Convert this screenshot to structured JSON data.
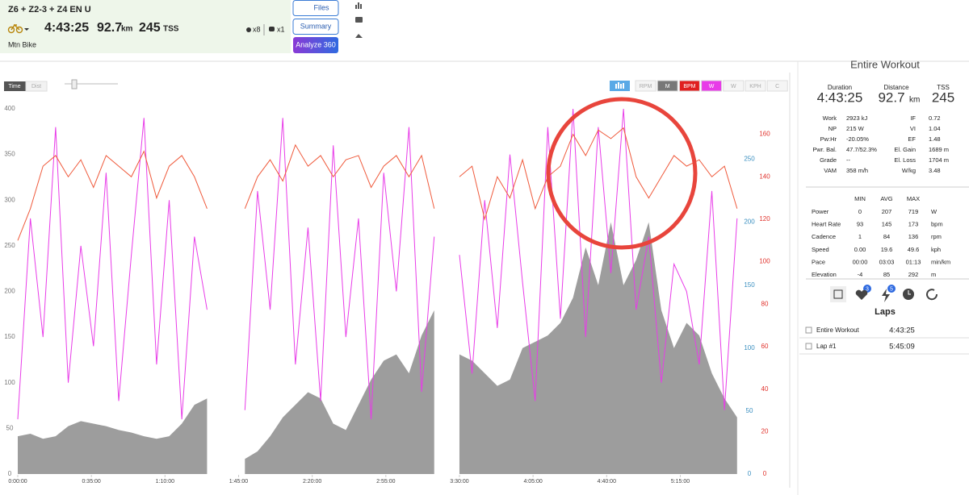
{
  "header": {
    "title": "Z6 + Z2-3 + Z4 EN U",
    "duration": "4:43:25",
    "distance": "92.7",
    "distance_unit": "km",
    "tss": "245",
    "tss_unit": "TSS",
    "likes": "x8",
    "comments": "x1",
    "sport": "Mtn Bike"
  },
  "buttons": {
    "files": "Files",
    "summary": "Summary",
    "analyze": "Analyze 360"
  },
  "chart_toolbar": {
    "time": "Time",
    "dist": "Dist",
    "channels": [
      "RPM",
      "M",
      "BPM",
      "W",
      "W",
      "KPH",
      "C"
    ]
  },
  "chart_data": {
    "type": "line",
    "x": [
      0,
      6,
      12,
      18,
      24,
      30,
      36,
      42,
      48,
      54,
      60,
      66,
      72,
      78,
      84,
      90,
      96,
      102,
      108,
      114,
      120,
      126,
      132,
      138,
      144,
      150,
      156,
      162,
      168,
      174,
      180,
      186,
      192,
      198,
      204,
      210,
      216,
      222,
      228,
      234,
      240,
      246,
      252,
      258,
      264,
      270,
      276,
      282,
      288,
      294,
      300,
      306,
      312,
      318,
      324,
      330,
      336,
      342
    ],
    "series": [
      {
        "type": "area",
        "axis": "y2",
        "color": "#8c8c8c",
        "values": [
          30,
          32,
          28,
          30,
          38,
          42,
          40,
          38,
          35,
          33,
          30,
          28,
          30,
          40,
          55,
          60,
          null,
          null,
          12,
          18,
          30,
          45,
          55,
          65,
          60,
          40,
          35,
          55,
          75,
          90,
          95,
          80,
          110,
          130,
          null,
          95,
          90,
          80,
          70,
          75,
          100,
          105,
          110,
          120,
          140,
          180,
          150,
          200,
          150,
          170,
          200,
          130,
          100,
          120,
          110,
          80,
          60,
          45
        ]
      },
      {
        "type": "line",
        "axis": "y",
        "color": "#e83ce8",
        "values": [
          60,
          280,
          150,
          380,
          100,
          250,
          140,
          330,
          80,
          240,
          390,
          120,
          300,
          60,
          260,
          180,
          null,
          null,
          70,
          310,
          180,
          390,
          120,
          270,
          80,
          360,
          150,
          280,
          60,
          330,
          200,
          380,
          90,
          260,
          null,
          240,
          110,
          300,
          160,
          350,
          210,
          80,
          380,
          170,
          400,
          150,
          380,
          220,
          400,
          180,
          260,
          100,
          230,
          200,
          120,
          310,
          70,
          280
        ]
      },
      {
        "type": "line",
        "axis": "y3",
        "color": "#ef5a3c",
        "values": [
          110,
          125,
          145,
          150,
          140,
          148,
          135,
          150,
          145,
          140,
          152,
          130,
          145,
          150,
          140,
          125,
          null,
          null,
          125,
          140,
          148,
          138,
          155,
          145,
          150,
          140,
          148,
          150,
          135,
          145,
          150,
          140,
          150,
          125,
          null,
          140,
          145,
          120,
          140,
          130,
          148,
          125,
          140,
          145,
          160,
          150,
          162,
          158,
          163,
          140,
          130,
          140,
          150,
          145,
          148,
          140,
          145,
          125
        ]
      }
    ],
    "xlim": [
      0,
      344
    ],
    "xticks": [
      {
        "value": 0,
        "label": "0:00:00"
      },
      {
        "value": 35,
        "label": "0:35:00"
      },
      {
        "value": 70,
        "label": "1:10:00"
      },
      {
        "value": 105,
        "label": "1:45:00"
      },
      {
        "value": 140,
        "label": "2:20:00"
      },
      {
        "value": 175,
        "label": "2:55:00"
      },
      {
        "value": 210,
        "label": "3:30:00"
      },
      {
        "value": 245,
        "label": "4:05:00"
      },
      {
        "value": 280,
        "label": "4:40:00"
      },
      {
        "value": 315,
        "label": "5:15:00"
      }
    ],
    "ylim": [
      0,
      400
    ],
    "yticks": [
      0,
      50,
      100,
      150,
      200,
      250,
      300,
      350,
      400
    ],
    "ycolor": "#777777",
    "y2lim": [
      0,
      290
    ],
    "y2ticks": [
      0,
      50,
      100,
      150,
      200,
      250
    ],
    "y2color": "#3a8fc0",
    "y3lim": [
      0,
      172
    ],
    "y3ticks": [
      0,
      20,
      40,
      60,
      80,
      100,
      120,
      140,
      160
    ],
    "y3color": "#e0302a"
  },
  "summary": {
    "title": "Entire Workout",
    "metrics": [
      {
        "label": "Duration",
        "value": "4:43:25"
      },
      {
        "label": "Distance",
        "value": "92.7",
        "unit": "km"
      },
      {
        "label": "TSS",
        "value": "245"
      }
    ],
    "stats": [
      [
        "Work",
        "2923 kJ",
        "IF",
        "0.72"
      ],
      [
        "NP",
        "215 W",
        "VI",
        "1.04"
      ],
      [
        "Pw:Hr",
        "-20.05%",
        "EF",
        "1.48"
      ],
      [
        "Pwr. Bal.",
        "47.7/52.3%",
        "El. Gain",
        "1689 m"
      ],
      [
        "Grade",
        "--",
        "El. Loss",
        "1704 m"
      ],
      [
        "VAM",
        "358 m/h",
        "W/kg",
        "3.48"
      ]
    ],
    "range_header": [
      "MIN",
      "AVG",
      "MAX"
    ],
    "range_rows": [
      [
        "Power",
        "0",
        "207",
        "719",
        "W"
      ],
      [
        "Heart Rate",
        "93",
        "145",
        "173",
        "bpm"
      ],
      [
        "Cadence",
        "1",
        "84",
        "136",
        "rpm"
      ],
      [
        "Speed",
        "0.00",
        "19.6",
        "49.6",
        "kph"
      ],
      [
        "Pace",
        "00:00",
        "03:03",
        "01:13",
        "min/km"
      ],
      [
        "Elevation",
        "-4",
        "85",
        "292",
        "m"
      ]
    ],
    "badges": [
      "3",
      "5"
    ]
  },
  "laps": {
    "title": "Laps",
    "rows": [
      [
        "Entire Workout",
        "4:43:25"
      ],
      [
        "Lap #1",
        "5:45:09"
      ]
    ]
  }
}
